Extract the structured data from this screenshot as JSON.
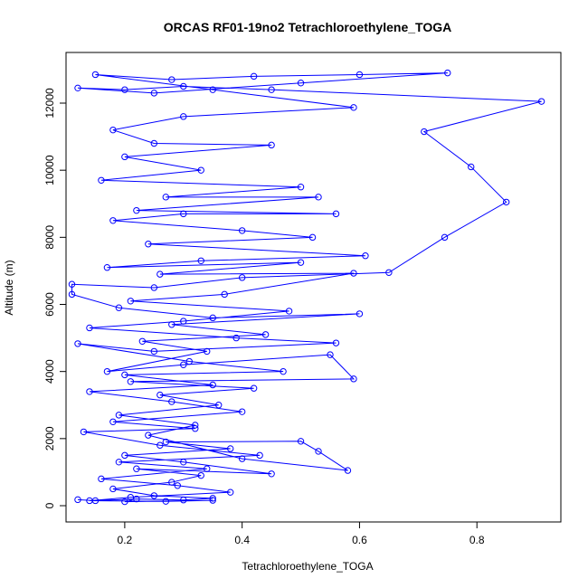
{
  "chart_data": {
    "type": "line",
    "title": "ORCAS RF01-19no2 Tetrachloroethylene_TOGA",
    "x_label": "Tetrachloroethylene_TOGA",
    "y_label": "Altitude (m)",
    "color": "#0000ff",
    "markers": true,
    "xlim": [
      0.1,
      0.943
    ],
    "ylim": [
      -485,
      13510
    ],
    "xticks": [
      0.2,
      0.4,
      0.6,
      0.8
    ],
    "yticks": [
      0,
      2000,
      4000,
      6000,
      8000,
      10000,
      12000
    ],
    "x": [
      0.12,
      0.15,
      0.22,
      0.3,
      0.35,
      0.25,
      0.18,
      0.28,
      0.33,
      0.22,
      0.45,
      0.3,
      0.2,
      0.38,
      0.27,
      0.5,
      0.53,
      0.58,
      0.4,
      0.24,
      0.32,
      0.19,
      0.36,
      0.26,
      0.42,
      0.21,
      0.59,
      0.55,
      0.3,
      0.17,
      0.34,
      0.23,
      0.44,
      0.28,
      0.6,
      0.35,
      0.19,
      0.11,
      0.11,
      0.25,
      0.4,
      0.65,
      0.745,
      0.85,
      0.79,
      0.71,
      0.91,
      0.45,
      0.3,
      0.2,
      0.12,
      0.25,
      0.5,
      0.75,
      0.6,
      0.42,
      0.28,
      0.15,
      0.35,
      0.59,
      0.3,
      0.18,
      0.25,
      0.45,
      0.2,
      0.33,
      0.16,
      0.5,
      0.27,
      0.53,
      0.22,
      0.56,
      0.3,
      0.18,
      0.4,
      0.52,
      0.24,
      0.61,
      0.33,
      0.17,
      0.5,
      0.26,
      0.59,
      0.37,
      0.21,
      0.48,
      0.3,
      0.14,
      0.39,
      0.56,
      0.25,
      0.12,
      0.31,
      0.47,
      0.2,
      0.35,
      0.14,
      0.28,
      0.4,
      0.18,
      0.32,
      0.13,
      0.26,
      0.43,
      0.19,
      0.34,
      0.16,
      0.29,
      0.38,
      0.21,
      0.14,
      0.27,
      0.35,
      0.2
    ],
    "values": [
      180,
      150,
      200,
      170,
      220,
      300,
      500,
      700,
      900,
      1100,
      950,
      1300,
      1500,
      1700,
      1900,
      1920,
      1620,
      1050,
      1400,
      2100,
      2400,
      2700,
      3000,
      3300,
      3500,
      3700,
      3780,
      4500,
      4200,
      4000,
      4600,
      4900,
      5100,
      5400,
      5720,
      5600,
      5900,
      6300,
      6600,
      6500,
      6800,
      6950,
      8000,
      9050,
      10100,
      11150,
      12050,
      12400,
      12500,
      12400,
      12450,
      12300,
      12600,
      12900,
      12850,
      12800,
      12700,
      12850,
      12400,
      11870,
      11600,
      11200,
      10800,
      10750,
      10400,
      10000,
      9700,
      9500,
      9200,
      9200,
      8800,
      8700,
      8700,
      8500,
      8200,
      8000,
      7800,
      7450,
      7300,
      7100,
      7250,
      6900,
      6930,
      6300,
      6100,
      5800,
      5500,
      5300,
      5000,
      4850,
      4600,
      4830,
      4300,
      4000,
      3900,
      3600,
      3400,
      3100,
      2800,
      2500,
      2300,
      2200,
      1800,
      1500,
      1300,
      1100,
      800,
      600,
      400,
      250,
      150,
      130,
      160,
      120
    ]
  }
}
